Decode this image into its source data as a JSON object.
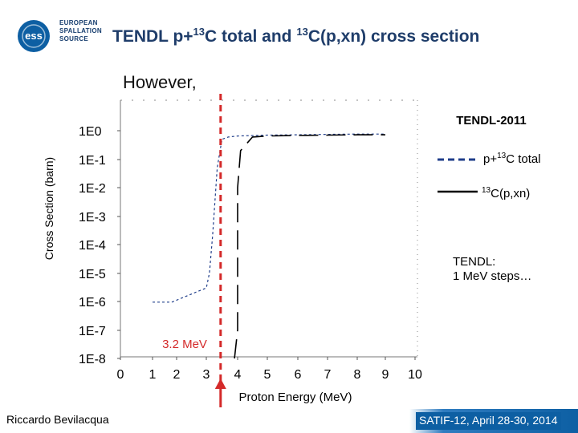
{
  "header": {
    "logo": {
      "lines": [
        "EUROPEAN",
        "SPALLATION",
        "SOURCE"
      ],
      "mark": "ess"
    },
    "title_parts": [
      "TENDL p+",
      "13",
      "C total and ",
      "13",
      "C(p,xn) cross section"
    ]
  },
  "subtitle": "However,",
  "chart_data": {
    "type": "line",
    "title": "TENDL-2011",
    "xlabel": "Proton Energy (MeV)",
    "ylabel": "Cross Section (barn)",
    "x_ticks": [
      "0",
      "1",
      "2",
      "3",
      "4",
      "5",
      "6",
      "7",
      "8",
      "9",
      "10"
    ],
    "y_ticks": [
      "1E0",
      "1E-1",
      "1E-2",
      "1E-3",
      "1E-4",
      "1E-5",
      "1E-6",
      "1E-7",
      "1E-8"
    ],
    "xlim": [
      0,
      10
    ],
    "ylog_range": [
      -8,
      0
    ],
    "series": [
      {
        "name_parts": [
          "p+",
          "13",
          "C total"
        ],
        "style": "dashed",
        "color": "#1f3d8a",
        "x": [
          1.0,
          1.8,
          3.0,
          3.1,
          3.2,
          3.35,
          3.5,
          3.7,
          4.0,
          5.0,
          6.0,
          7.0,
          8.0,
          9.0
        ],
        "y": [
          9.5e-07,
          9.5e-07,
          3e-06,
          1e-05,
          0.0002,
          0.05,
          0.5,
          0.6,
          0.65,
          0.7,
          0.72,
          0.74,
          0.76,
          0.76
        ]
      },
      {
        "name_parts": [
          "13",
          "C(p,xn)"
        ],
        "style": "solid",
        "color": "#000000",
        "x": [
          3.9,
          4.0,
          4.0,
          4.0,
          4.1,
          4.5,
          5.0,
          6.0,
          7.0,
          8.0,
          9.0
        ],
        "y": [
          1e-08,
          1e-07,
          0.0001,
          0.01,
          0.2,
          0.6,
          0.65,
          0.68,
          0.7,
          0.72,
          0.72
        ]
      }
    ],
    "annotations": {
      "threshold_label": "3.2 MeV",
      "threshold_x": 3.2,
      "arrow_x": 3.2,
      "note_lines": [
        "TENDL:",
        "1 MeV steps…"
      ]
    },
    "grid": false,
    "legend_placement": "right"
  },
  "footer": {
    "author": "Riccardo Bevilacqua",
    "conference": "SATIF-12, April 28-30, 2014"
  },
  "colors": {
    "title": "#1f3d6a",
    "marker": "#d42a2a",
    "brand": "#0d5fa3"
  }
}
